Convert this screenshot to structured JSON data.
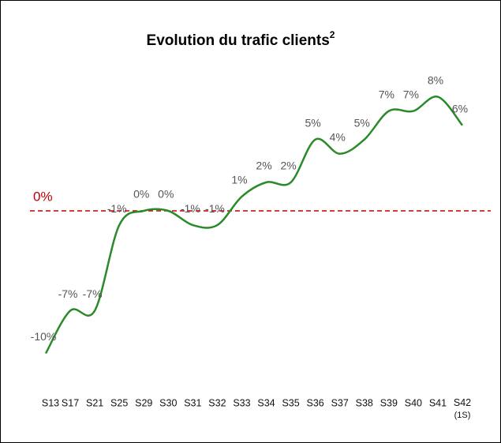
{
  "chart_data": {
    "type": "line",
    "title": "Evolution du trafic clients",
    "title_superscript": "2",
    "categories": [
      "S13",
      "S17",
      "S21",
      "S25",
      "S29",
      "S30",
      "S31",
      "S32",
      "S33",
      "S34",
      "S35",
      "S36",
      "S37",
      "S38",
      "S39",
      "S40",
      "S41",
      "S42 (1S)"
    ],
    "series": [
      {
        "name": "Trafic clients",
        "color": "#2a8a2a",
        "values": [
          -10,
          -7,
          -7,
          -1,
          0,
          0,
          -1,
          -1,
          1,
          2,
          2,
          5,
          4,
          5,
          7,
          7,
          8,
          6
        ],
        "value_labels": [
          "-10%",
          "-7%",
          "-7%",
          "-1%",
          "0%",
          "0%",
          "-1%",
          "-1%",
          "1%",
          "2%",
          "2%",
          "5%",
          "4%",
          "5%",
          "7%",
          "7%",
          "8%",
          "6%"
        ]
      }
    ],
    "ylim": [
      -11,
      9
    ],
    "reference_line": {
      "value": 0,
      "label": "0%",
      "color": "#c00000"
    }
  }
}
